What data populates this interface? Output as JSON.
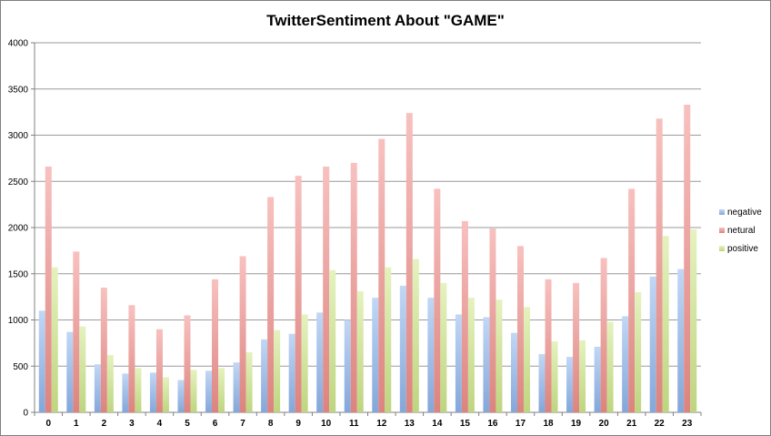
{
  "chart_data": {
    "type": "bar",
    "title": "TwitterSentiment About \"GAME\"",
    "xlabel": "",
    "ylabel": "",
    "categories": [
      "0",
      "1",
      "2",
      "3",
      "4",
      "5",
      "6",
      "7",
      "8",
      "9",
      "10",
      "11",
      "12",
      "13",
      "14",
      "15",
      "16",
      "17",
      "18",
      "19",
      "20",
      "21",
      "22",
      "23"
    ],
    "ylim": [
      0,
      4000
    ],
    "yticks": [
      0,
      500,
      1000,
      1500,
      2000,
      2500,
      3000,
      3500,
      4000
    ],
    "grid": true,
    "legend_position": "right",
    "series": [
      {
        "name": "negative",
        "color": "#8fb6ec",
        "values": [
          1100,
          870,
          520,
          420,
          430,
          350,
          450,
          540,
          790,
          850,
          1080,
          1000,
          1240,
          1370,
          1240,
          1060,
          1030,
          860,
          630,
          600,
          710,
          1040,
          1470,
          1550
        ]
      },
      {
        "name": "netural",
        "color": "#f08e8a",
        "values": [
          2660,
          1740,
          1350,
          1160,
          900,
          1050,
          1440,
          1690,
          2330,
          2560,
          2660,
          2700,
          2960,
          3240,
          2420,
          2070,
          1990,
          1800,
          1440,
          1400,
          1670,
          2420,
          3180,
          3330
        ]
      },
      {
        "name": "positive",
        "color": "#cfe88a",
        "values": [
          1570,
          930,
          620,
          480,
          380,
          460,
          480,
          650,
          890,
          1060,
          1540,
          1310,
          1570,
          1660,
          1400,
          1240,
          1220,
          1140,
          770,
          780,
          980,
          1300,
          1910,
          1980
        ]
      }
    ]
  }
}
